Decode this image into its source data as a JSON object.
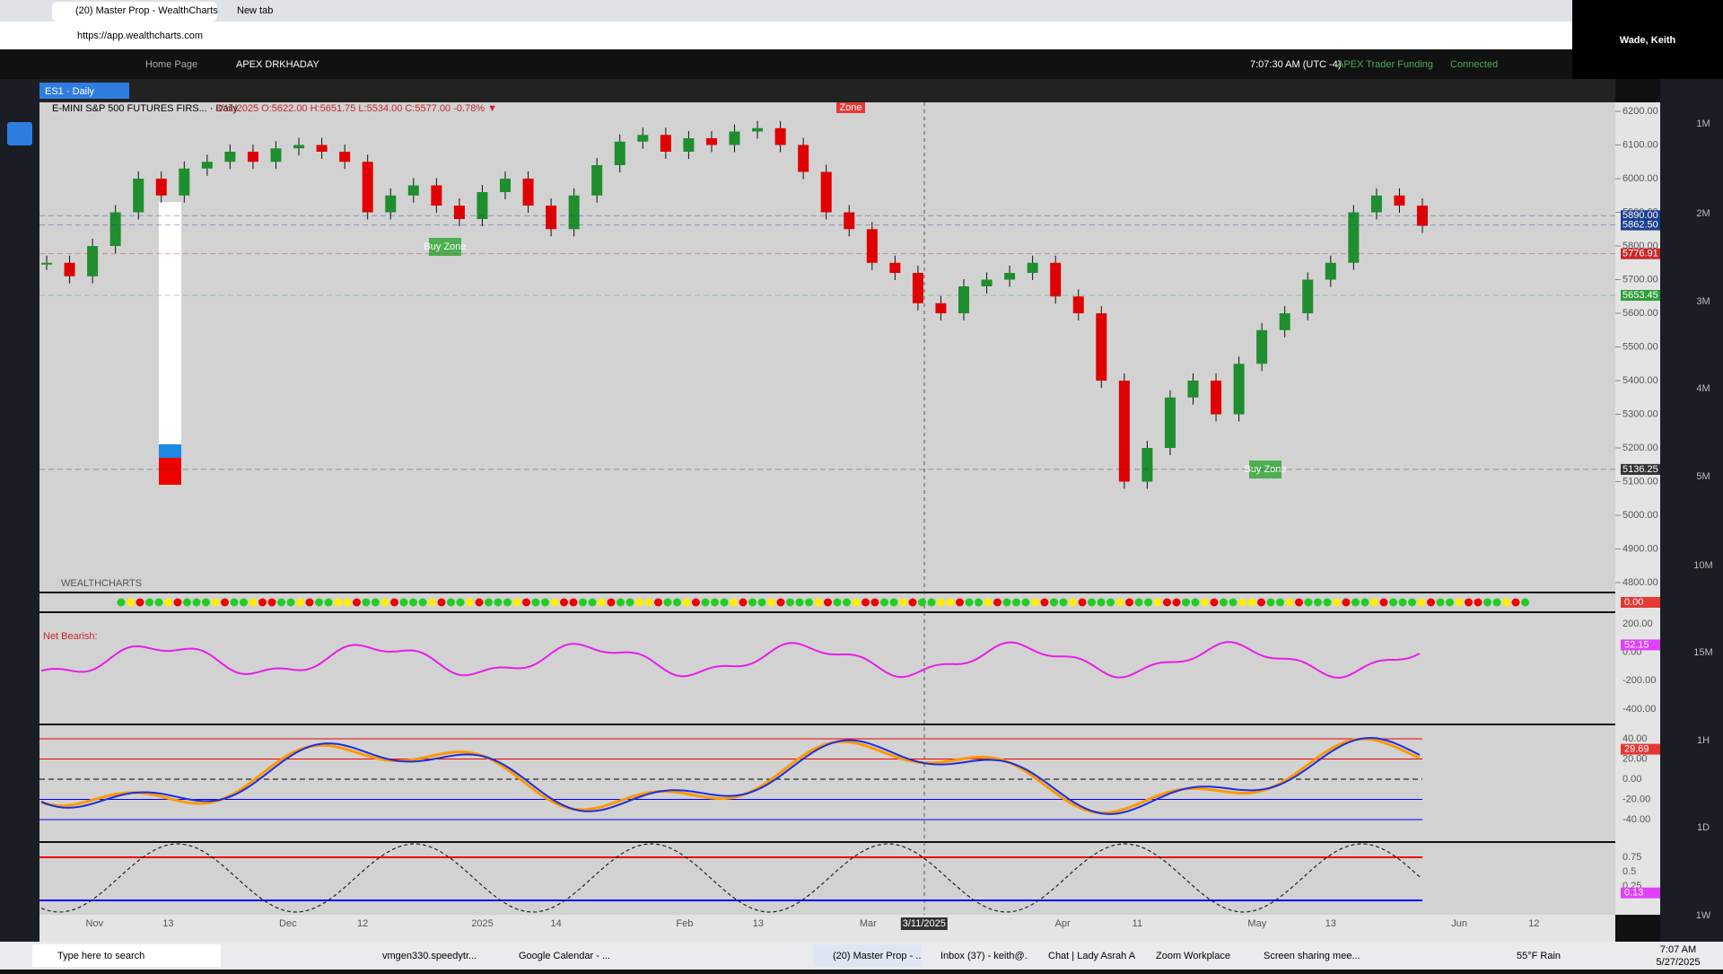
{
  "browser": {
    "tabs": [
      "(20) Master Prop - WealthCharts",
      "New tab"
    ],
    "url": "https://app.wealthcharts.com"
  },
  "overlay": {
    "user": "Wade, Keith"
  },
  "app_header": {
    "tabs": [
      "Home Page",
      "APEX DRKHADAY"
    ],
    "time": "7:07:30 AM  (UTC -4)",
    "account": "APEX Trader Funding",
    "status": "Connected"
  },
  "chart": {
    "tab": "ES1 · Daily",
    "symbol": "E-MINI S&P 500 FUTURES FIRS... · Daily",
    "ohlc": "3/11/2025 O:5622.00 H:5651.75 L:5534.00 C:5577.00 -0.78% ▼",
    "annotations": [
      "Buy Zone",
      "Buy Zone",
      "Zone"
    ],
    "brand": "WEALTHCHARTS",
    "net_label": "Net Bearish:",
    "yticks": [
      {
        "value": 6200,
        "label": "6200.00"
      },
      {
        "value": 6100,
        "label": "6100.00"
      },
      {
        "value": 6000,
        "label": "6000.00"
      },
      {
        "value": 5900,
        "label": "5900.00"
      },
      {
        "value": 5800,
        "label": "5800.00"
      },
      {
        "value": 5700,
        "label": "5700.00"
      },
      {
        "value": 5600,
        "label": "5600.00"
      },
      {
        "value": 5500,
        "label": "5500.00"
      },
      {
        "value": 5400,
        "label": "5400.00"
      },
      {
        "value": 5300,
        "label": "5300.00"
      },
      {
        "value": 5200,
        "label": "5200.00"
      },
      {
        "value": 5100,
        "label": "5100.00"
      },
      {
        "value": 5000,
        "label": "5000.00"
      },
      {
        "value": 4900,
        "label": "4900.00"
      },
      {
        "value": 4800,
        "label": "4800.00"
      }
    ],
    "price_tags": [
      {
        "value": 5890,
        "label": "5890.00",
        "color": "#1b3f8f"
      },
      {
        "value": 5862.5,
        "label": "5862.50",
        "color": "#1b3f8f"
      },
      {
        "value": 5776.91,
        "label": "5776.91",
        "color": "#c62828"
      },
      {
        "value": 5653.45,
        "label": "5653.45",
        "color": "#2e9d3a"
      },
      {
        "value": 5136.25,
        "label": "5136.25",
        "color": "#333333"
      }
    ],
    "closes": [
      5750,
      5710,
      5800,
      5900,
      6000,
      5950,
      6030,
      6050,
      6080,
      6050,
      6090,
      6100,
      6080,
      6050,
      5900,
      5950,
      5980,
      5920,
      5880,
      5960,
      6000,
      5920,
      5850,
      5950,
      6040,
      6110,
      6130,
      6080,
      6120,
      6100,
      6140,
      6150,
      6100,
      6020,
      5900,
      5850,
      5750,
      5720,
      5630,
      5600,
      5680,
      5700,
      5720,
      5750,
      5650,
      5600,
      5400,
      5100,
      5200,
      5350,
      5400,
      5300,
      5450,
      5550,
      5600,
      5700,
      5750,
      5900,
      5950,
      5920,
      5860
    ],
    "x_labels": [
      "Nov",
      "13",
      "Dec",
      "12",
      "2025",
      "14",
      "Feb",
      "13",
      "Mar",
      "3/11/2025",
      "Apr",
      "11",
      "May",
      "13",
      "Jun",
      "12"
    ],
    "timeframes": [
      "1M",
      "2M",
      "3M",
      "4M",
      "5M",
      "10M",
      "15M",
      "1H",
      "1D",
      "1W"
    ],
    "signal_tag": {
      "value": 0,
      "label": "0.00"
    },
    "oscillator": {
      "yticks": [
        {
          "value": 200,
          "label": "200.00"
        },
        {
          "value": 0,
          "label": "0.00"
        },
        {
          "value": -200,
          "label": "-200.00"
        },
        {
          "value": -400,
          "label": "-400.00"
        }
      ],
      "tag": {
        "value": 52.15,
        "label": "52.15"
      }
    },
    "stochastic": {
      "yticks": [
        {
          "value": 40,
          "label": "40.00"
        },
        {
          "value": 20,
          "label": "20.00"
        },
        {
          "value": 0,
          "label": "0.00"
        },
        {
          "value": -20,
          "label": "-20.00"
        },
        {
          "value": -40,
          "label": "-40.00"
        }
      ],
      "tag": {
        "value": 29.69,
        "label": "29.69"
      }
    },
    "cycle": {
      "yticks": [
        0.75,
        0.5,
        0.25
      ],
      "tag": {
        "value": 0.13,
        "label": "0.13"
      }
    }
  },
  "taskbar": {
    "search": "Type here to search",
    "items": [
      "vmgen330.speedytr...",
      "Google Calendar - ...",
      "(20) Master Prop - ...",
      "Inbox (37) - keith@...",
      "Chat | Lady Asrah A...",
      "Zoom Workplace",
      "Screen sharing mee..."
    ],
    "weather": "55°F  Rain",
    "time": "7:07 AM",
    "date": "5/27/2025"
  }
}
